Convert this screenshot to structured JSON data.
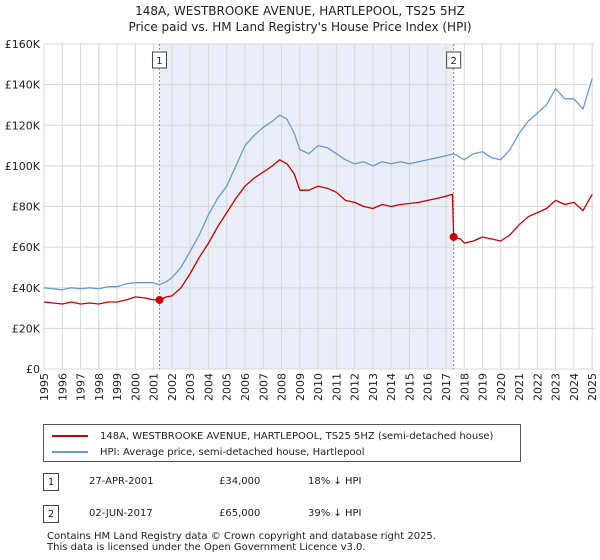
{
  "chart_data": {
    "type": "line",
    "title": "148A, WESTBROOKE AVENUE, HARTLEPOOL, TS25 5HZ",
    "subtitle": "Price paid vs. HM Land Registry's House Price Index (HPI)",
    "xlabel": "",
    "ylabel": "",
    "xlim": [
      1995,
      2025.1
    ],
    "ylim": [
      0,
      160000
    ],
    "x_ticks": [
      "1995",
      "1996",
      "1997",
      "1998",
      "1999",
      "2000",
      "2001",
      "2002",
      "2003",
      "2004",
      "2005",
      "2006",
      "2007",
      "2008",
      "2009",
      "2010",
      "2011",
      "2012",
      "2013",
      "2014",
      "2015",
      "2016",
      "2017",
      "2018",
      "2019",
      "2020",
      "2021",
      "2022",
      "2023",
      "2024",
      "2025"
    ],
    "y_ticks": [
      {
        "value": 0,
        "label": "£0"
      },
      {
        "value": 20000,
        "label": "£20K"
      },
      {
        "value": 40000,
        "label": "£40K"
      },
      {
        "value": 60000,
        "label": "£60K"
      },
      {
        "value": 80000,
        "label": "£80K"
      },
      {
        "value": 100000,
        "label": "£100K"
      },
      {
        "value": 120000,
        "label": "£120K"
      },
      {
        "value": 140000,
        "label": "£140K"
      },
      {
        "value": 160000,
        "label": "£160K"
      }
    ],
    "grid": true,
    "shaded_period": [
      2001.32,
      2017.42
    ],
    "series": [
      {
        "name": "148A, WESTBROOKE AVENUE, HARTLEPOOL, TS25 5HZ (semi-detached house)",
        "color": "#cc0000",
        "points": [
          [
            1995.0,
            33000
          ],
          [
            1995.5,
            32500
          ],
          [
            1996.0,
            32000
          ],
          [
            1996.5,
            33000
          ],
          [
            1997.0,
            32000
          ],
          [
            1997.5,
            32500
          ],
          [
            1998.0,
            32000
          ],
          [
            1998.5,
            33000
          ],
          [
            1999.0,
            33000
          ],
          [
            1999.5,
            34000
          ],
          [
            2000.0,
            35500
          ],
          [
            2000.5,
            35000
          ],
          [
            2001.0,
            34000
          ],
          [
            2001.32,
            34000
          ],
          [
            2001.7,
            35500
          ],
          [
            2002.0,
            36000
          ],
          [
            2002.5,
            40000
          ],
          [
            2003.0,
            47000
          ],
          [
            2003.5,
            55000
          ],
          [
            2004.0,
            62000
          ],
          [
            2004.5,
            70000
          ],
          [
            2005.0,
            77000
          ],
          [
            2005.5,
            84000
          ],
          [
            2006.0,
            90000
          ],
          [
            2006.5,
            94000
          ],
          [
            2007.0,
            97000
          ],
          [
            2007.5,
            100000
          ],
          [
            2007.9,
            103000
          ],
          [
            2008.3,
            101000
          ],
          [
            2008.7,
            96000
          ],
          [
            2009.0,
            88000
          ],
          [
            2009.5,
            88000
          ],
          [
            2010.0,
            90000
          ],
          [
            2010.5,
            89000
          ],
          [
            2011.0,
            87000
          ],
          [
            2011.5,
            83000
          ],
          [
            2012.0,
            82000
          ],
          [
            2012.5,
            80000
          ],
          [
            2013.0,
            79000
          ],
          [
            2013.5,
            81000
          ],
          [
            2014.0,
            80000
          ],
          [
            2014.5,
            81000
          ],
          [
            2015.0,
            81500
          ],
          [
            2015.5,
            82000
          ],
          [
            2016.0,
            83000
          ],
          [
            2016.5,
            84000
          ],
          [
            2017.0,
            85000
          ],
          [
            2017.35,
            86000
          ],
          [
            2017.42,
            65000
          ],
          [
            2017.8,
            64000
          ],
          [
            2018.0,
            62000
          ],
          [
            2018.5,
            63000
          ],
          [
            2019.0,
            65000
          ],
          [
            2019.5,
            64000
          ],
          [
            2020.0,
            63000
          ],
          [
            2020.5,
            66000
          ],
          [
            2021.0,
            71000
          ],
          [
            2021.5,
            75000
          ],
          [
            2022.0,
            77000
          ],
          [
            2022.5,
            79000
          ],
          [
            2023.0,
            83000
          ],
          [
            2023.5,
            81000
          ],
          [
            2024.0,
            82000
          ],
          [
            2024.5,
            78000
          ],
          [
            2025.0,
            86000
          ]
        ]
      },
      {
        "name": "HPI: Average price, semi-detached house, Hartlepool",
        "color": "#6a9bd8",
        "points": [
          [
            1995.0,
            40000
          ],
          [
            1995.5,
            39500
          ],
          [
            1996.0,
            39000
          ],
          [
            1996.5,
            40000
          ],
          [
            1997.0,
            39500
          ],
          [
            1997.5,
            40000
          ],
          [
            1998.0,
            39500
          ],
          [
            1998.5,
            40500
          ],
          [
            1999.0,
            40500
          ],
          [
            1999.5,
            42000
          ],
          [
            2000.0,
            42500
          ],
          [
            2000.5,
            42500
          ],
          [
            2001.0,
            42500
          ],
          [
            2001.32,
            41500
          ],
          [
            2001.7,
            43000
          ],
          [
            2002.0,
            45000
          ],
          [
            2002.5,
            50000
          ],
          [
            2003.0,
            58000
          ],
          [
            2003.5,
            66000
          ],
          [
            2004.0,
            76000
          ],
          [
            2004.5,
            84000
          ],
          [
            2005.0,
            90000
          ],
          [
            2005.5,
            100000
          ],
          [
            2006.0,
            110000
          ],
          [
            2006.5,
            115000
          ],
          [
            2007.0,
            119000
          ],
          [
            2007.5,
            122000
          ],
          [
            2007.9,
            125000
          ],
          [
            2008.3,
            123000
          ],
          [
            2008.7,
            116000
          ],
          [
            2009.0,
            108000
          ],
          [
            2009.5,
            106000
          ],
          [
            2010.0,
            110000
          ],
          [
            2010.5,
            109000
          ],
          [
            2011.0,
            106000
          ],
          [
            2011.5,
            103000
          ],
          [
            2012.0,
            101000
          ],
          [
            2012.5,
            102000
          ],
          [
            2013.0,
            100000
          ],
          [
            2013.5,
            102000
          ],
          [
            2014.0,
            101000
          ],
          [
            2014.5,
            102000
          ],
          [
            2015.0,
            101000
          ],
          [
            2015.5,
            102000
          ],
          [
            2016.0,
            103000
          ],
          [
            2016.5,
            104000
          ],
          [
            2017.0,
            105000
          ],
          [
            2017.42,
            106000
          ],
          [
            2017.8,
            104000
          ],
          [
            2018.0,
            103000
          ],
          [
            2018.5,
            106000
          ],
          [
            2019.0,
            107000
          ],
          [
            2019.5,
            104000
          ],
          [
            2020.0,
            103000
          ],
          [
            2020.5,
            108000
          ],
          [
            2021.0,
            116000
          ],
          [
            2021.5,
            122000
          ],
          [
            2022.0,
            126000
          ],
          [
            2022.5,
            130000
          ],
          [
            2023.0,
            138000
          ],
          [
            2023.5,
            133000
          ],
          [
            2024.0,
            133000
          ],
          [
            2024.5,
            128000
          ],
          [
            2025.0,
            143000
          ]
        ]
      }
    ],
    "annotations": [
      {
        "label": "1",
        "x": 2001.32,
        "sale_value": 34000
      },
      {
        "label": "2",
        "x": 2017.42,
        "sale_value": 65000
      }
    ]
  },
  "legend": {
    "property_label": "148A, WESTBROOKE AVENUE, HARTLEPOOL, TS25 5HZ (semi-detached house)",
    "hpi_label": "HPI: Average price, semi-detached house, Hartlepool"
  },
  "sales": [
    {
      "num": "1",
      "date": "27-APR-2001",
      "price": "£34,000",
      "diff": "18% ↓ HPI"
    },
    {
      "num": "2",
      "date": "02-JUN-2017",
      "price": "£65,000",
      "diff": "39% ↓ HPI"
    }
  ],
  "footer": {
    "line1": "Contains HM Land Registry data © Crown copyright and database right 2025.",
    "line2": "This data is licensed under the Open Government Licence v3.0."
  },
  "colors": {
    "property": "#cc0000",
    "hpi": "#6a9bd8",
    "shade": "#e9eef9",
    "grid": "#d8d8d8",
    "marker_line": "#e06666"
  }
}
